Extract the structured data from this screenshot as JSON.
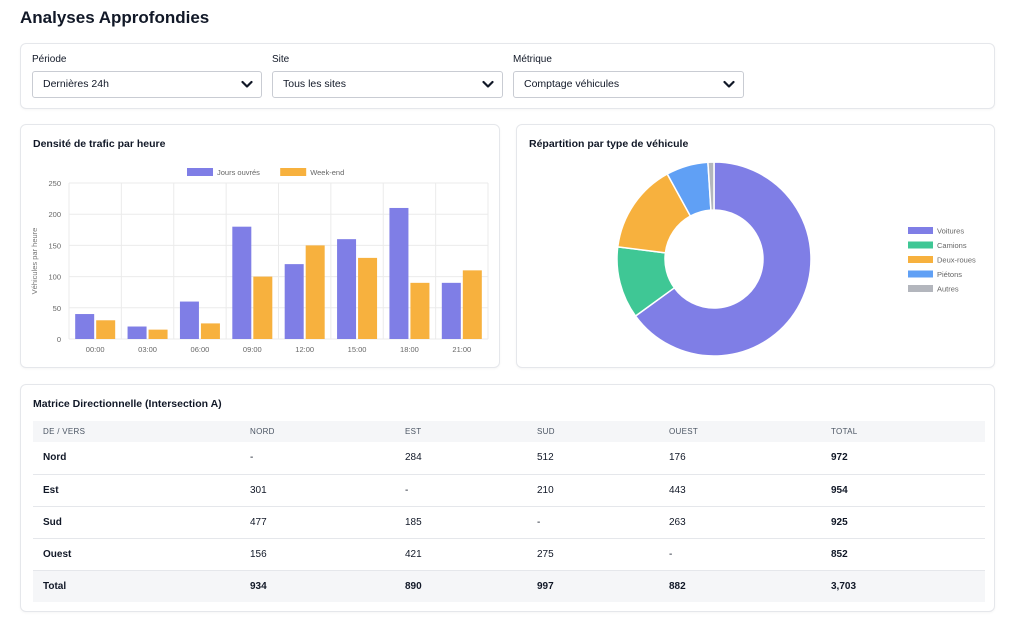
{
  "page": {
    "title": "Analyses Approfondies"
  },
  "filters": {
    "period": {
      "label": "Période",
      "value": "Dernières 24h"
    },
    "site": {
      "label": "Site",
      "value": "Tous les sites"
    },
    "metric": {
      "label": "Métrique",
      "value": "Comptage véhicules"
    }
  },
  "chart_data": [
    {
      "type": "bar",
      "title": "Densité de trafic par heure",
      "categories": [
        "00:00",
        "03:00",
        "06:00",
        "09:00",
        "12:00",
        "15:00",
        "18:00",
        "21:00"
      ],
      "series": [
        {
          "name": "Jours ouvrés",
          "color": "#7f7ee6",
          "values": [
            40,
            20,
            60,
            180,
            120,
            160,
            210,
            90
          ]
        },
        {
          "name": "Week-end",
          "color": "#f7b13e",
          "values": [
            30,
            15,
            25,
            100,
            150,
            130,
            90,
            110
          ]
        }
      ],
      "ylabel": "Véhicules par heure",
      "xlabel": "",
      "ylim": [
        0,
        250
      ],
      "yticks": [
        0,
        50,
        100,
        150,
        200,
        250
      ],
      "grid": true,
      "legend": "top-center"
    },
    {
      "type": "pie",
      "title": "Répartition par type de véhicule",
      "donut": true,
      "legend": "right",
      "slices": [
        {
          "name": "Voitures",
          "value": 65,
          "color": "#7f7ee6"
        },
        {
          "name": "Camions",
          "value": 12,
          "color": "#3fc795"
        },
        {
          "name": "Deux-roues",
          "value": 15,
          "color": "#f7b13e"
        },
        {
          "name": "Piétons",
          "value": 7,
          "color": "#60a0f5"
        },
        {
          "name": "Autres",
          "value": 1,
          "color": "#b3b6bd"
        }
      ]
    }
  ],
  "matrix": {
    "title": "Matrice Directionnelle (Intersection A)",
    "headers": [
      "DE / VERS",
      "NORD",
      "EST",
      "SUD",
      "OUEST",
      "TOTAL"
    ],
    "rows": [
      [
        "Nord",
        "-",
        "284",
        "512",
        "176",
        "972"
      ],
      [
        "Est",
        "301",
        "-",
        "210",
        "443",
        "954"
      ],
      [
        "Sud",
        "477",
        "185",
        "-",
        "263",
        "925"
      ],
      [
        "Ouest",
        "156",
        "421",
        "275",
        "-",
        "852"
      ],
      [
        "Total",
        "934",
        "890",
        "997",
        "882",
        "3,703"
      ]
    ]
  }
}
